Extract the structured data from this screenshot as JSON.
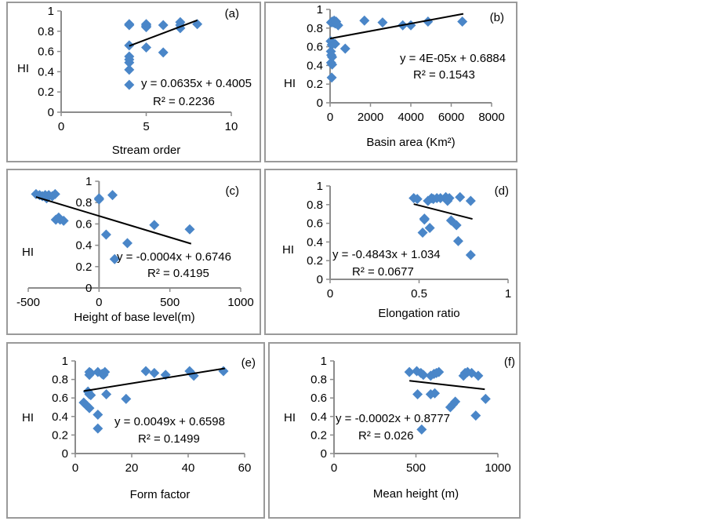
{
  "colors": {
    "marker": "#4a86c8",
    "marker_overlap": "#5a2fc0",
    "trend": "#000000",
    "axis": "#8c8c8c"
  },
  "chart_data": [
    {
      "id": "a",
      "type": "scatter",
      "panel_label": "(a)",
      "xlabel": "Stream order",
      "ylabel": "HI",
      "xlim": [
        0,
        10
      ],
      "ylim": [
        0,
        1
      ],
      "xticks": [
        0,
        5,
        10
      ],
      "yticks": [
        0,
        0.2,
        0.4,
        0.6,
        0.8,
        1
      ],
      "xtick_labels": [
        "0",
        "5",
        "10"
      ],
      "ytick_labels": [
        "0",
        "0.2",
        "0.4",
        "0.6",
        "0.8",
        "1"
      ],
      "points": [
        [
          4,
          0.87
        ],
        [
          4,
          0.86
        ],
        [
          4,
          0.66
        ],
        [
          4,
          0.55
        ],
        [
          4,
          0.52
        ],
        [
          4,
          0.49
        ],
        [
          4,
          0.42
        ],
        [
          4,
          0.27
        ],
        [
          5,
          0.87
        ],
        [
          5,
          0.86
        ],
        [
          5,
          0.85
        ],
        [
          5,
          0.84
        ],
        [
          5,
          0.64
        ],
        [
          6,
          0.86
        ],
        [
          6,
          0.59
        ],
        [
          7,
          0.89
        ],
        [
          7,
          0.86
        ],
        [
          7,
          0.83
        ],
        [
          8,
          0.87
        ]
      ],
      "trendline": {
        "slope": 0.0635,
        "intercept": 0.4005,
        "x_range": [
          4,
          8
        ]
      },
      "equation": "y = 0.0635x + 0.4005",
      "r2": "R² = 0.2236"
    },
    {
      "id": "b",
      "type": "scatter",
      "panel_label": "(b)",
      "xlabel": "Basin area (Km²)",
      "ylabel": "HI",
      "xlim": [
        0,
        8000
      ],
      "ylim": [
        0,
        1
      ],
      "xticks": [
        0,
        2000,
        4000,
        6000,
        8000
      ],
      "yticks": [
        0,
        0.2,
        0.4,
        0.6,
        0.8,
        1
      ],
      "xtick_labels": [
        "0",
        "2000",
        "4000",
        "6000",
        "8000"
      ],
      "ytick_labels": [
        "0",
        "0.2",
        "0.4",
        "0.6",
        "0.8",
        "1"
      ],
      "points": [
        [
          50,
          0.86
        ],
        [
          100,
          0.87
        ],
        [
          150,
          0.86
        ],
        [
          200,
          0.88
        ],
        [
          250,
          0.85
        ],
        [
          300,
          0.87
        ],
        [
          400,
          0.83
        ],
        [
          30,
          0.66
        ],
        [
          80,
          0.62
        ],
        [
          150,
          0.64
        ],
        [
          250,
          0.63
        ],
        [
          40,
          0.55
        ],
        [
          60,
          0.51
        ],
        [
          100,
          0.49
        ],
        [
          50,
          0.43
        ],
        [
          100,
          0.41
        ],
        [
          80,
          0.27
        ],
        [
          750,
          0.58
        ],
        [
          1700,
          0.88
        ],
        [
          2600,
          0.86
        ],
        [
          3600,
          0.83
        ],
        [
          4000,
          0.83
        ],
        [
          4850,
          0.87
        ],
        [
          6550,
          0.87
        ]
      ],
      "trendline": {
        "slope": 4e-05,
        "intercept": 0.6884,
        "x_range": [
          0,
          6600
        ]
      },
      "equation": "y = 4E-05x + 0.6884",
      "r2": "R² = 0.1543"
    },
    {
      "id": "c",
      "type": "scatter",
      "panel_label": "(c)",
      "xlabel": "Height of base level(m)",
      "ylabel": "HI",
      "xlim": [
        -500,
        1000
      ],
      "ylim": [
        0,
        1
      ],
      "xticks": [
        -500,
        0,
        500,
        1000
      ],
      "yticks": [
        0,
        0.2,
        0.4,
        0.6,
        0.8,
        1
      ],
      "xtick_labels": [
        "-500",
        "0",
        "500",
        "1000"
      ],
      "ytick_labels": [
        "0",
        "0.2",
        "0.4",
        "0.6",
        "0.8",
        "1"
      ],
      "points": [
        [
          -445,
          0.88
        ],
        [
          -420,
          0.87
        ],
        [
          -400,
          0.86
        ],
        [
          -380,
          0.87
        ],
        [
          -370,
          0.84
        ],
        [
          -355,
          0.87
        ],
        [
          -330,
          0.86
        ],
        [
          -310,
          0.88
        ],
        [
          -305,
          0.64
        ],
        [
          -285,
          0.66
        ],
        [
          -275,
          0.64
        ],
        [
          -250,
          0.63
        ],
        [
          0,
          0.84
        ],
        [
          0,
          0.83
        ],
        [
          95,
          0.87
        ],
        [
          50,
          0.5
        ],
        [
          200,
          0.42
        ],
        [
          110,
          0.27
        ],
        [
          390,
          0.59
        ],
        [
          640,
          0.55
        ]
      ],
      "trendline": {
        "slope": -0.0004,
        "intercept": 0.6746,
        "x_range": [
          -445,
          650
        ]
      },
      "equation": "y = -0.0004x + 0.6746",
      "r2": "R² = 0.4195"
    },
    {
      "id": "d",
      "type": "scatter",
      "panel_label": "(d)",
      "xlabel": "Elongation ratio",
      "ylabel": "HI",
      "xlim": [
        0,
        1
      ],
      "ylim": [
        0,
        1
      ],
      "xticks": [
        0,
        0.5,
        1
      ],
      "yticks": [
        0,
        0.2,
        0.4,
        0.6,
        0.8,
        1
      ],
      "xtick_labels": [
        "0",
        "0.5",
        "1"
      ],
      "ytick_labels": [
        "0",
        "0.2",
        "0.4",
        "0.6",
        "0.8",
        "1"
      ],
      "points": [
        [
          0.47,
          0.87
        ],
        [
          0.49,
          0.86
        ],
        [
          0.55,
          0.84
        ],
        [
          0.57,
          0.87
        ],
        [
          0.58,
          0.86
        ],
        [
          0.6,
          0.87
        ],
        [
          0.62,
          0.87
        ],
        [
          0.65,
          0.88
        ],
        [
          0.66,
          0.86
        ],
        [
          0.66,
          0.84
        ],
        [
          0.67,
          0.87
        ],
        [
          0.73,
          0.88
        ],
        [
          0.79,
          0.84
        ],
        [
          0.53,
          0.65
        ],
        [
          0.53,
          0.64
        ],
        [
          0.52,
          0.5
        ],
        [
          0.56,
          0.55
        ],
        [
          0.68,
          0.63
        ],
        [
          0.71,
          0.58
        ],
        [
          0.72,
          0.41
        ],
        [
          0.79,
          0.26
        ]
      ],
      "trendline": {
        "slope": -0.4843,
        "intercept": 1.034,
        "x_range": [
          0.47,
          0.8
        ]
      },
      "equation": "y = -0.4843x + 1.034",
      "r2": "R² = 0.0677"
    },
    {
      "id": "e",
      "type": "scatter",
      "panel_label": "(e)",
      "xlabel": "Form factor",
      "ylabel": "HI",
      "xlim": [
        0,
        60
      ],
      "ylim": [
        0,
        1
      ],
      "xticks": [
        0,
        20,
        40,
        60
      ],
      "yticks": [
        0,
        0.2,
        0.4,
        0.6,
        0.8,
        1
      ],
      "xtick_labels": [
        "0",
        "20",
        "40",
        "60"
      ],
      "ytick_labels": [
        "0",
        "0.2",
        "0.4",
        "0.6",
        "0.8",
        "1"
      ],
      "points": [
        [
          5,
          0.88
        ],
        [
          5.5,
          0.87
        ],
        [
          8,
          0.88
        ],
        [
          9.5,
          0.86
        ],
        [
          10,
          0.85
        ],
        [
          10.5,
          0.88
        ],
        [
          5,
          0.85
        ],
        [
          4.5,
          0.67
        ],
        [
          5,
          0.64
        ],
        [
          5.5,
          0.63
        ],
        [
          11,
          0.64
        ],
        [
          18,
          0.59
        ],
        [
          3,
          0.55
        ],
        [
          4,
          0.52
        ],
        [
          5,
          0.49
        ],
        [
          8,
          0.42
        ],
        [
          8,
          0.27
        ],
        [
          25,
          0.89
        ],
        [
          28,
          0.87
        ],
        [
          32,
          0.85
        ],
        [
          40.5,
          0.89
        ],
        [
          42,
          0.84
        ],
        [
          52.5,
          0.89
        ]
      ],
      "trendline": {
        "slope": 0.0049,
        "intercept": 0.6598,
        "x_range": [
          3,
          53
        ]
      },
      "equation": "y = 0.0049x + 0.6598",
      "r2": "R² = 0.1499"
    },
    {
      "id": "f",
      "type": "scatter",
      "panel_label": "(f)",
      "xlabel": "Mean height (m)",
      "ylabel": "HI",
      "xlim": [
        0,
        1000
      ],
      "ylim": [
        0,
        1
      ],
      "xticks": [
        0,
        500,
        1000
      ],
      "yticks": [
        0,
        0.2,
        0.4,
        0.6,
        0.8,
        1
      ],
      "xtick_labels": [
        "0",
        "500",
        "1000"
      ],
      "ytick_labels": [
        "0",
        "0.2",
        "0.4",
        "0.6",
        "0.8",
        "1"
      ],
      "points": [
        [
          460,
          0.88
        ],
        [
          505,
          0.89
        ],
        [
          530,
          0.87
        ],
        [
          545,
          0.85
        ],
        [
          590,
          0.84
        ],
        [
          610,
          0.86
        ],
        [
          625,
          0.87
        ],
        [
          640,
          0.88
        ],
        [
          790,
          0.84
        ],
        [
          800,
          0.87
        ],
        [
          815,
          0.88
        ],
        [
          840,
          0.87
        ],
        [
          880,
          0.84
        ],
        [
          510,
          0.64
        ],
        [
          590,
          0.64
        ],
        [
          615,
          0.65
        ],
        [
          710,
          0.5
        ],
        [
          725,
          0.53
        ],
        [
          740,
          0.56
        ],
        [
          925,
          0.59
        ],
        [
          865,
          0.41
        ],
        [
          535,
          0.26
        ]
      ],
      "trendline": {
        "slope": -0.0002,
        "intercept": 0.8777,
        "x_range": [
          460,
          920
        ]
      },
      "equation": "y = -0.0002x + 0.8777",
      "r2": "R² = 0.026"
    }
  ]
}
